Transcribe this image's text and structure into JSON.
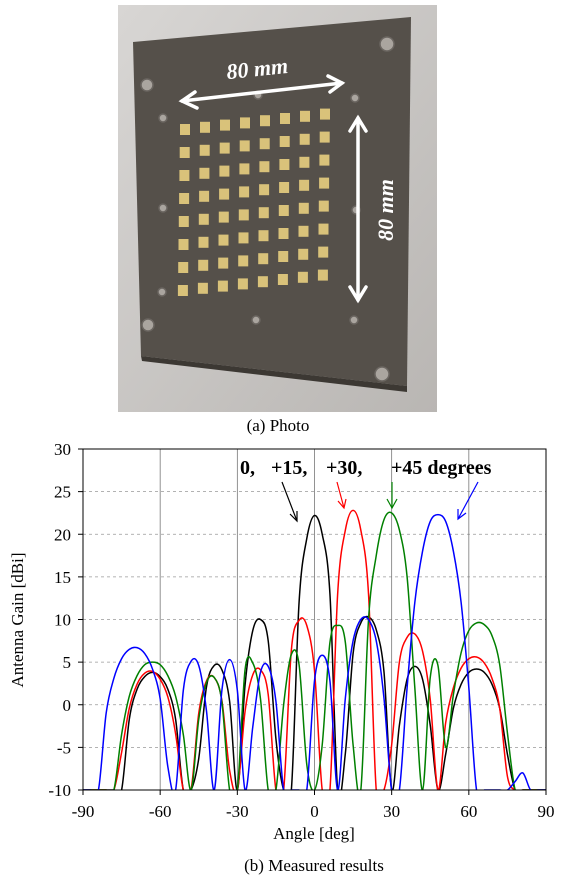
{
  "figure": {
    "photo": {
      "width_label": "80 mm",
      "height_label": "80 mm"
    },
    "photo_caption": "(a) Photo",
    "chart_caption": "(b) Measured results"
  },
  "chart_data": {
    "type": "line",
    "xlabel": "Angle [deg]",
    "ylabel": "Antenna Gain [dBi]",
    "xlim": [
      -90,
      90
    ],
    "ylim": [
      -10,
      30
    ],
    "xticks": [
      -90,
      -60,
      -30,
      0,
      30,
      60,
      90
    ],
    "yticks": [
      -10,
      -5,
      0,
      5,
      10,
      15,
      20,
      25,
      30
    ],
    "grid": true,
    "annotations": [
      {
        "text": "0,",
        "color": "#000000"
      },
      {
        "text": "+15,",
        "color": "#ff0000"
      },
      {
        "text": "+30,",
        "color": "#008000"
      },
      {
        "text": "+45 degrees",
        "color": "#0000ff"
      }
    ],
    "x": [
      -90,
      -87,
      -84,
      -81,
      -78,
      -75,
      -72,
      -69,
      -66,
      -63,
      -60,
      -57,
      -54,
      -51,
      -48,
      -45,
      -42,
      -39,
      -36,
      -33,
      -30,
      -27,
      -24,
      -21,
      -18,
      -15,
      -12,
      -9,
      -6,
      -3,
      0,
      3,
      6,
      9,
      12,
      15,
      18,
      21,
      24,
      27,
      30,
      33,
      36,
      39,
      42,
      45,
      48,
      51,
      54,
      57,
      60,
      63,
      66,
      69,
      72,
      75,
      78,
      81,
      84,
      87,
      90
    ],
    "series": [
      {
        "color": "#000000",
        "values": [
          -10,
          -10,
          -10,
          -10,
          -10,
          -10,
          -1.7,
          1.8,
          3.3,
          3.8,
          3.3,
          1.8,
          -1.7,
          -10,
          -10,
          -6.3,
          2.1,
          4.6,
          4.1,
          0.4,
          -10,
          2.3,
          8.7,
          10,
          7.5,
          -4,
          -10,
          -10,
          12,
          19.5,
          22.2,
          20,
          13,
          -10,
          -5.7,
          6,
          9.6,
          10.3,
          8.8,
          3.9,
          -10,
          -2.4,
          3,
          4.5,
          3,
          -2.4,
          -10,
          -5.8,
          -0.4,
          2.4,
          3.8,
          4.2,
          3.8,
          2.4,
          -0.4,
          -5.8,
          -10,
          -10,
          -10,
          -10,
          -10
        ]
      },
      {
        "color": "#ff0000",
        "values": [
          -10,
          -10,
          -10,
          -10,
          -10,
          -5.6,
          -0.4,
          2.4,
          3.7,
          3.9,
          3,
          0.9,
          -3.4,
          -10,
          -10,
          -1,
          2.8,
          3.2,
          0.5,
          -7.7,
          -10,
          -0.8,
          3.5,
          4.1,
          1.2,
          -10,
          -10,
          6.4,
          9.9,
          9.3,
          4,
          -10,
          -10,
          13,
          20.5,
          22.8,
          20.5,
          13,
          -10,
          -10,
          -4.7,
          5,
          7.9,
          8.3,
          6.3,
          0.6,
          -10,
          -2.1,
          2,
          4.3,
          5.4,
          5.6,
          4.9,
          3.1,
          -0.4,
          -8.4,
          -10,
          -10,
          -10,
          -10,
          -10
        ]
      },
      {
        "color": "#008000",
        "values": [
          -10,
          -10,
          -10,
          -10,
          -10,
          -3.5,
          1,
          3.4,
          4.7,
          5,
          4.7,
          3.4,
          1,
          -3.5,
          -10,
          -1.7,
          2.6,
          3.2,
          0.3,
          -10,
          -10,
          4.1,
          4.9,
          0.7,
          -10,
          -10,
          0,
          5.9,
          4.7,
          -7,
          -10,
          -4.7,
          7.3,
          9.3,
          7.3,
          -4.7,
          -10,
          10,
          17.5,
          21.7,
          22.5,
          20.5,
          15,
          2,
          -10,
          3.2,
          4.6,
          -5,
          1.2,
          6.1,
          8.7,
          9.6,
          9.4,
          8.1,
          4.7,
          -3.3,
          -10,
          -10,
          -10,
          -10,
          -10
        ]
      },
      {
        "color": "#0000ff",
        "values": [
          -10,
          -10,
          -10,
          -1,
          3.1,
          5.4,
          6.5,
          6.7,
          6,
          4.2,
          0.7,
          -7.3,
          -10,
          1.7,
          5.1,
          4.6,
          -0.7,
          -10,
          1.7,
          5.3,
          1.7,
          -10,
          -2.6,
          3.8,
          4.5,
          0.4,
          -10,
          -10,
          -10,
          -10,
          2.8,
          5.8,
          2.8,
          -10,
          0.8,
          7.5,
          10,
          10,
          7.5,
          0.8,
          -10,
          -10,
          2,
          12,
          18,
          21.5,
          22.3,
          21.5,
          18,
          12,
          2,
          -10,
          -10,
          -10,
          -10,
          -10,
          -9,
          -8,
          -10,
          -10,
          -10
        ]
      }
    ]
  }
}
